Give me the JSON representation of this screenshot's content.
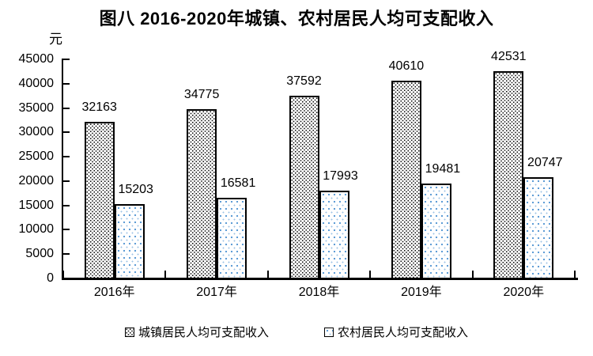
{
  "chart_data": {
    "type": "bar",
    "title": "图八 2016-2020年城镇、农村居民人均可支配收入",
    "ylabel": "元",
    "xlabel": "",
    "categories": [
      "2016年",
      "2017年",
      "2018年",
      "2019年",
      "2020年"
    ],
    "series": [
      {
        "key": "urban",
        "name": "城镇居民人均可支配收入",
        "values": [
          32163,
          34775,
          37592,
          40610,
          42531
        ],
        "pattern": "black-stipple-dots"
      },
      {
        "key": "rural",
        "name": "农村居民人均可支配收入",
        "values": [
          15203,
          16581,
          17993,
          19481,
          20747
        ],
        "pattern": "blue-dots"
      }
    ],
    "ylim": [
      0,
      45000
    ],
    "ytick_step": 5000,
    "ytick_labels": [
      "0",
      "5000",
      "10000",
      "15000",
      "20000",
      "25000",
      "30000",
      "35000",
      "40000",
      "45000"
    ],
    "grid": false,
    "legend_position": "bottom",
    "colors": {
      "axis": "#000000",
      "bar_border": "#000000",
      "urban_dot": "#000000",
      "rural_dot": "#5b9bd5",
      "rural_dot_light": "#9dc3e6",
      "background": "#ffffff",
      "text": "#000000"
    }
  }
}
